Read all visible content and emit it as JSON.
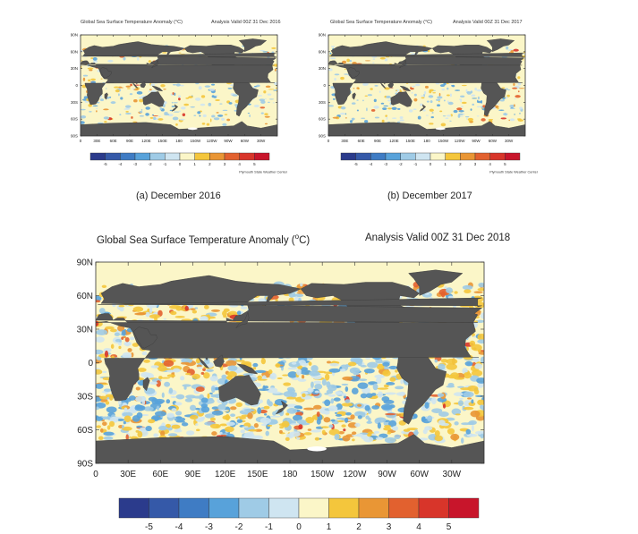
{
  "colors": {
    "ocean_base": "#fbf6c8",
    "land": "#555555",
    "ice": "#ffffff",
    "frame": "#333333"
  },
  "colorbar": {
    "labels": [
      "-5",
      "-4",
      "-3",
      "-2",
      "-1",
      "0",
      "1",
      "2",
      "3",
      "4",
      "5"
    ],
    "colors": [
      "#2b3b8c",
      "#3559a8",
      "#3f7cc4",
      "#58a2da",
      "#9fcbe6",
      "#cfe5f1",
      "#fbf6c8",
      "#f4c63c",
      "#e99635",
      "#e2612f",
      "#d8352a",
      "#c8152b"
    ]
  },
  "axes": {
    "lat_ticks": [
      "90N",
      "60N",
      "30N",
      "0",
      "30S",
      "60S",
      "90S"
    ],
    "lon_ticks": [
      "0",
      "30E",
      "60E",
      "90E",
      "120E",
      "150E",
      "180",
      "150W",
      "120W",
      "90W",
      "60W",
      "30W"
    ]
  },
  "panels": [
    {
      "id": "dec2016",
      "title": "Global Sea Surface Temperature Anomaly (°C)",
      "valid": "Analysis Valid 00Z 31 Dec 2016",
      "credit": "Plymouth State Weather Center",
      "caption": "(a) December 2016"
    },
    {
      "id": "dec2017",
      "title": "Global Sea Surface Temperature Anomaly (°C)",
      "valid": "Analysis Valid 00Z 31 Dec 2017",
      "credit": "Plymouth State Weather Center",
      "caption": "(b) December 2017"
    },
    {
      "id": "dec2018",
      "title": "Global Sea Surface Temperature Anomaly (",
      "title_degree": "o",
      "title_end": "C)",
      "valid": "Analysis Valid 00Z 31 Dec 2018"
    }
  ]
}
